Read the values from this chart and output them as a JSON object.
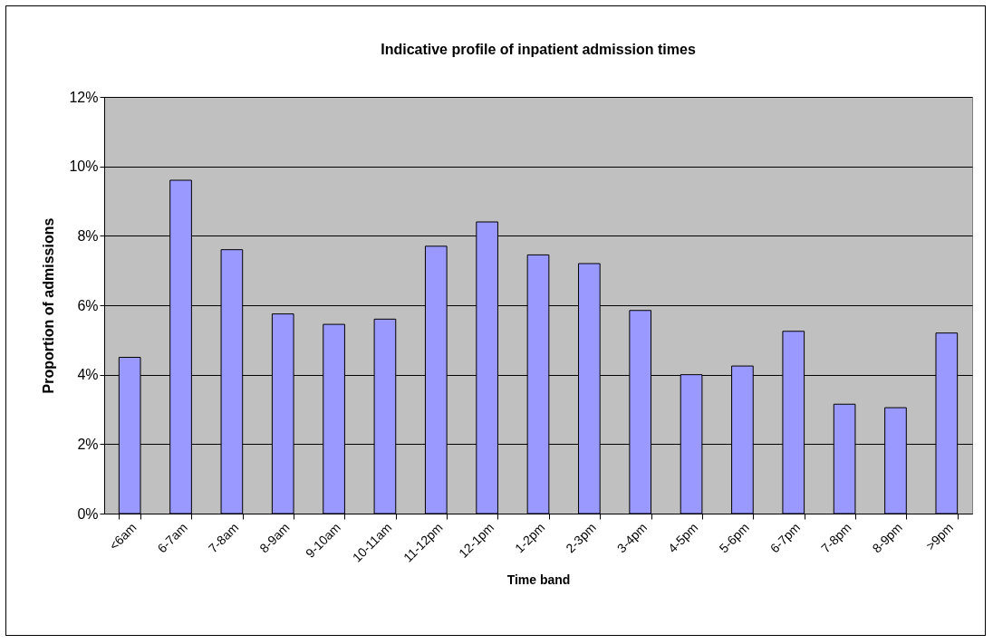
{
  "chart_data": {
    "type": "bar",
    "title": "Indicative profile of inpatient admission times",
    "xlabel": "Time band",
    "ylabel": "Proportion of admissions",
    "categories": [
      "<6am",
      "6-7am",
      "7-8am",
      "8-9am",
      "9-10am",
      "10-11am",
      "11-12pm",
      "12-1pm",
      "1-2pm",
      "2-3pm",
      "3-4pm",
      "4-5pm",
      "5-6pm",
      "6-7pm",
      "7-8pm",
      "8-9pm",
      ">9pm"
    ],
    "values": [
      4.5,
      9.6,
      7.6,
      5.75,
      5.45,
      5.6,
      7.7,
      8.4,
      7.45,
      7.2,
      5.85,
      4.0,
      4.25,
      5.25,
      3.15,
      3.05,
      5.2
    ],
    "color": "#9999ff",
    "ylim": [
      0,
      12
    ],
    "yticks": [
      {
        "value": 0,
        "label": "0%"
      },
      {
        "value": 2,
        "label": "2%"
      },
      {
        "value": 4,
        "label": "4%"
      },
      {
        "value": 6,
        "label": "6%"
      },
      {
        "value": 8,
        "label": "8%"
      },
      {
        "value": 10,
        "label": "10%"
      },
      {
        "value": 12,
        "label": "12%"
      }
    ],
    "grid": "y"
  }
}
